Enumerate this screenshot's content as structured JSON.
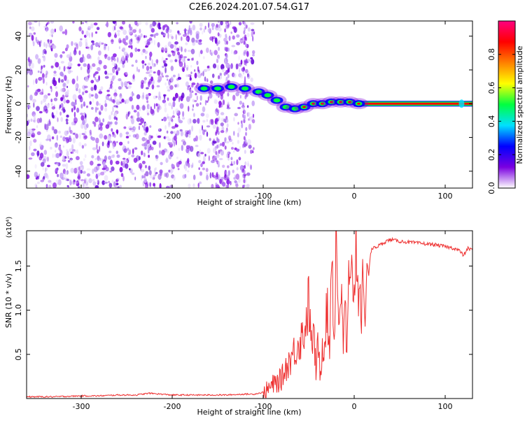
{
  "title": "C2E6.2024.201.07.54.G17",
  "chart_data": [
    {
      "type": "heatmap",
      "title": "C2E6.2024.201.07.54.G17",
      "xlabel": "Height of straight line (km)",
      "ylabel": "Frequency (Hz)",
      "xlim": [
        -360,
        130
      ],
      "ylim": [
        -50,
        49
      ],
      "xticks": [
        -300,
        -200,
        -100,
        0,
        100
      ],
      "xtick_labels": [
        "-300",
        "-200",
        "-100",
        "0",
        "100"
      ],
      "yticks": [
        -40,
        -20,
        0,
        20,
        40
      ],
      "ytick_labels": [
        "-40",
        "-20",
        "0",
        "20",
        "40"
      ],
      "colorbar": {
        "label": "Normalized spectral amplitude",
        "range": [
          0,
          1
        ],
        "ticks": [
          0.0,
          0.2,
          0.4,
          0.6,
          0.8
        ],
        "tick_labels": [
          "0.0",
          "0.2",
          "0.4",
          "0.6",
          "0.8"
        ],
        "colormap": [
          "#ffffff",
          "#7a00e0",
          "#0000ff",
          "#00e0ff",
          "#00ff40",
          "#ffff00",
          "#ff8000",
          "#ff0000",
          "#ff0080"
        ]
      },
      "noise_region": {
        "x_from": -360,
        "x_to": -110,
        "amplitude": 0.08
      },
      "signal_track": [
        {
          "x": -165,
          "y": 9
        },
        {
          "x": -150,
          "y": 9
        },
        {
          "x": -135,
          "y": 10
        },
        {
          "x": -120,
          "y": 9
        },
        {
          "x": -105,
          "y": 7
        },
        {
          "x": -95,
          "y": 5
        },
        {
          "x": -85,
          "y": 2
        },
        {
          "x": -75,
          "y": -2
        },
        {
          "x": -65,
          "y": -3
        },
        {
          "x": -55,
          "y": -2
        },
        {
          "x": -45,
          "y": 0
        },
        {
          "x": -35,
          "y": 0
        },
        {
          "x": -25,
          "y": 1
        },
        {
          "x": -15,
          "y": 1
        },
        {
          "x": -5,
          "y": 1
        },
        {
          "x": 5,
          "y": 0
        }
      ],
      "signal_line": {
        "x_from": 0,
        "x_to": 130,
        "y": 0
      },
      "series": [
        {
          "name": "",
          "color": "#ff0000"
        }
      ]
    },
    {
      "type": "line",
      "xlabel": "Height of straight line (km)",
      "ylabel": "SNR (10 * v/v)",
      "yscale_label": "(x10⁴)",
      "xlim": [
        -360,
        130
      ],
      "ylim": [
        0,
        1.9
      ],
      "xticks": [
        -300,
        -200,
        -100,
        0,
        100
      ],
      "xtick_labels": [
        "-300",
        "-200",
        "-100",
        "0",
        "100"
      ],
      "yticks": [
        0.5,
        1.0,
        1.5
      ],
      "ytick_labels": [
        "0.5",
        "1.0",
        "1.5"
      ],
      "series": [
        {
          "name": "",
          "color": "#ee3030",
          "x": [
            -360,
            -330,
            -300,
            -280,
            -260,
            -240,
            -225,
            -200,
            -180,
            -160,
            -140,
            -120,
            -110,
            -100,
            -95,
            -90,
            -85,
            -80,
            -75,
            -70,
            -65,
            -60,
            -55,
            -52,
            -50,
            -47,
            -45,
            -42,
            -40,
            -37,
            -35,
            -32,
            -30,
            -27,
            -25,
            -22,
            -20,
            -17,
            -15,
            -12,
            -10,
            -8,
            -6,
            -4,
            -2,
            0,
            2,
            4,
            6,
            8,
            10,
            12,
            14,
            16,
            18,
            20,
            25,
            30,
            35,
            40,
            50,
            60,
            70,
            80,
            90,
            100,
            110,
            115,
            120,
            125,
            130
          ],
          "y": [
            0.02,
            0.02,
            0.03,
            0.03,
            0.04,
            0.04,
            0.06,
            0.04,
            0.04,
            0.04,
            0.04,
            0.05,
            0.05,
            0.07,
            0.1,
            0.15,
            0.18,
            0.22,
            0.35,
            0.45,
            0.55,
            0.65,
            0.75,
            0.95,
            1.1,
            0.6,
            0.75,
            0.35,
            0.55,
            0.3,
            0.6,
            0.7,
            1.05,
            0.5,
            1.9,
            0.6,
            1.9,
            0.85,
            1.3,
            0.55,
            1.2,
            0.4,
            1.3,
            1.1,
            1.5,
            1.2,
            1.8,
            1.25,
            1.4,
            1.0,
            1.3,
            0.8,
            1.55,
            1.4,
            1.65,
            1.7,
            1.72,
            1.75,
            1.78,
            1.8,
            1.78,
            1.77,
            1.76,
            1.75,
            1.74,
            1.72,
            1.7,
            1.68,
            1.62,
            1.7,
            1.68
          ]
        }
      ]
    }
  ]
}
